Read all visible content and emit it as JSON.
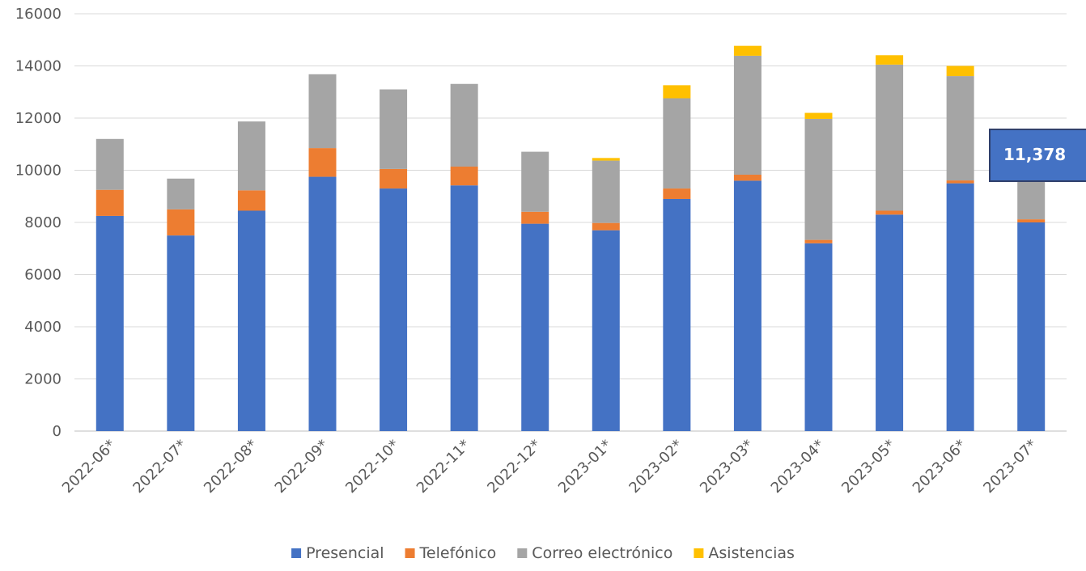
{
  "chart_data": {
    "type": "bar",
    "stacked": true,
    "categories": [
      "2022-06*",
      "2022-07*",
      "2022-08*",
      "2022-09*",
      "2022-10*",
      "2022-11*",
      "2022-12*",
      "2023-01*",
      "2023-02*",
      "2023-03*",
      "2023-04*",
      "2023-05*",
      "2023-06*",
      "2023-07*"
    ],
    "series": [
      {
        "name": "Presencial",
        "color": "#4472C4",
        "values": [
          8250,
          7500,
          8450,
          9750,
          9300,
          9420,
          7950,
          7700,
          8900,
          9600,
          7200,
          8300,
          9500,
          8000
        ]
      },
      {
        "name": "Telefónico",
        "color": "#ED7D31",
        "values": [
          1000,
          1000,
          780,
          1100,
          750,
          720,
          460,
          280,
          400,
          230,
          130,
          150,
          110,
          120
        ]
      },
      {
        "name": "Correo electrónico",
        "color": "#A5A5A5",
        "values": [
          1950,
          1180,
          2640,
          2830,
          3050,
          3170,
          2300,
          2390,
          3460,
          4560,
          4640,
          5600,
          4000,
          3000
        ]
      },
      {
        "name": "Asistencias",
        "color": "#FFC000",
        "values": [
          0,
          0,
          0,
          0,
          0,
          0,
          0,
          100,
          500,
          380,
          230,
          360,
          390,
          258
        ]
      }
    ],
    "ylim": [
      0,
      16000
    ],
    "yticks": [
      0,
      2000,
      4000,
      6000,
      8000,
      10000,
      12000,
      14000,
      16000
    ],
    "grid": true,
    "legend_position": "bottom",
    "annotation": {
      "text": "11,378",
      "category": "2023-07*",
      "fill": "#4472C4",
      "border": "#2F3F6B"
    }
  }
}
